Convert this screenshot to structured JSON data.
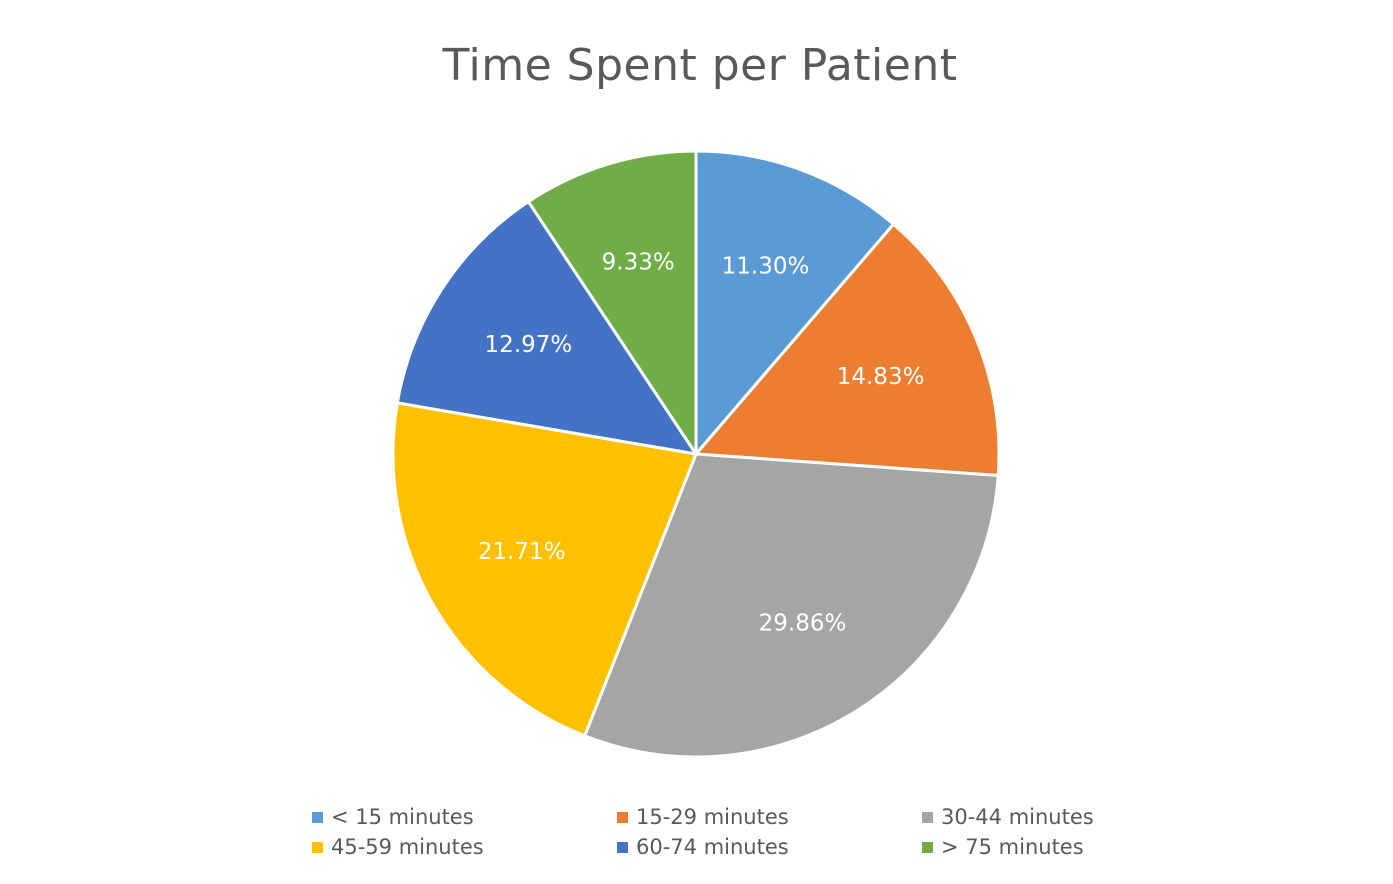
{
  "chart_data": {
    "type": "pie",
    "title": "Time Spent per Patient",
    "slices": [
      {
        "label": "< 15 minutes",
        "value": 11.3,
        "display": "11.30%",
        "color": "#5B9BD5"
      },
      {
        "label": "15-29 minutes",
        "value": 14.83,
        "display": "14.83%",
        "color": "#ED7D31"
      },
      {
        "label": "30-44 minutes",
        "value": 29.86,
        "display": "29.86%",
        "color": "#A5A5A5"
      },
      {
        "label": "45-59 minutes",
        "value": 21.71,
        "display": "21.71%",
        "color": "#FFC000"
      },
      {
        "label": "60-74 minutes",
        "value": 12.97,
        "display": "12.97%",
        "color": "#4472C4"
      },
      {
        "label": "> 75 minutes",
        "value": 9.33,
        "display": "9.33%",
        "color": "#70AD47"
      }
    ],
    "legend_position": "bottom",
    "data_labels": "inside"
  }
}
